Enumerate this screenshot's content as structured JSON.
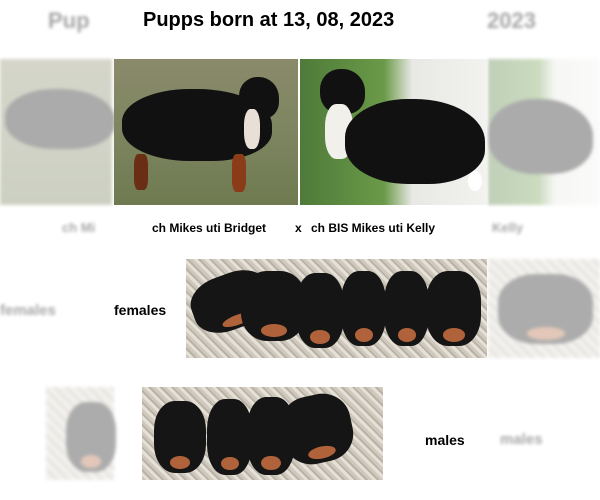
{
  "title": "Pupps born at 13, 08, 2023",
  "parents": {
    "sire": "ch Mikes uti Bridget",
    "separator": "x",
    "dam": "ch BIS Mikes uti Kelly"
  },
  "ghost": {
    "title_left": "Pup",
    "title_right": "2023",
    "caption_left": "ch Mi",
    "caption_right": "Kelly"
  },
  "females_label": "females",
  "males_label": "males",
  "images": {
    "sire_photo": "bernese-mountain-dog-photo",
    "dam_photo": "bernese-mountain-dog-photo",
    "females_photo": "six-female-puppies-photo",
    "males_photo": "four-male-puppies-photo"
  }
}
